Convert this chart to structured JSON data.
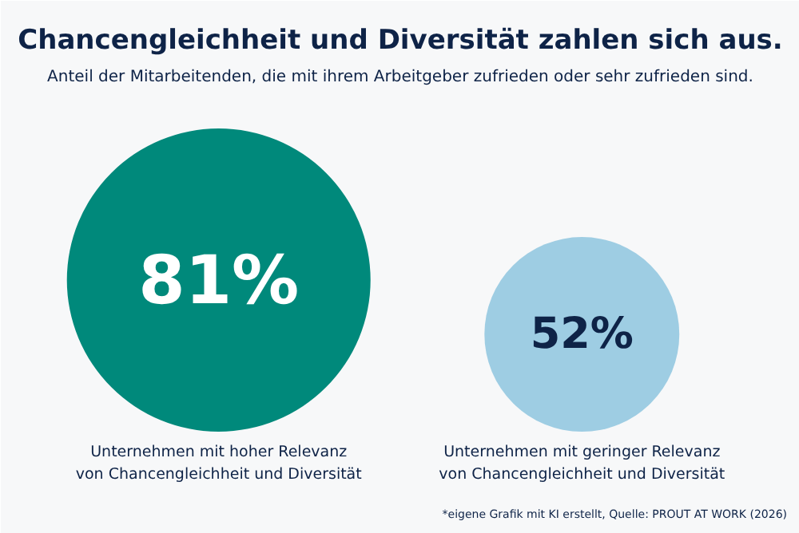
{
  "chart_data": {
    "type": "other",
    "title": "Chancengleichheit und Diversität zahlen sich aus.",
    "subtitle": "Anteil der Mitarbeitenden, die mit ihrem Arbeitgeber zufrieden oder sehr zufrieden sind.",
    "categories": [
      "Unternehmen mit hoher Relevanz\nvon Chancengleichheit und Diversität",
      "Unternehmen mit geringer Relevanz\nvon Chancengleichheit und Diversität"
    ],
    "values": [
      81,
      52
    ],
    "value_labels": [
      "81%",
      "52%"
    ],
    "colors": [
      "#00897b",
      "#9ecde3"
    ],
    "annotations": [
      "*eigene Grafik mit KI erstellt, Quelle: PROUT AT WORK (2026)"
    ]
  }
}
